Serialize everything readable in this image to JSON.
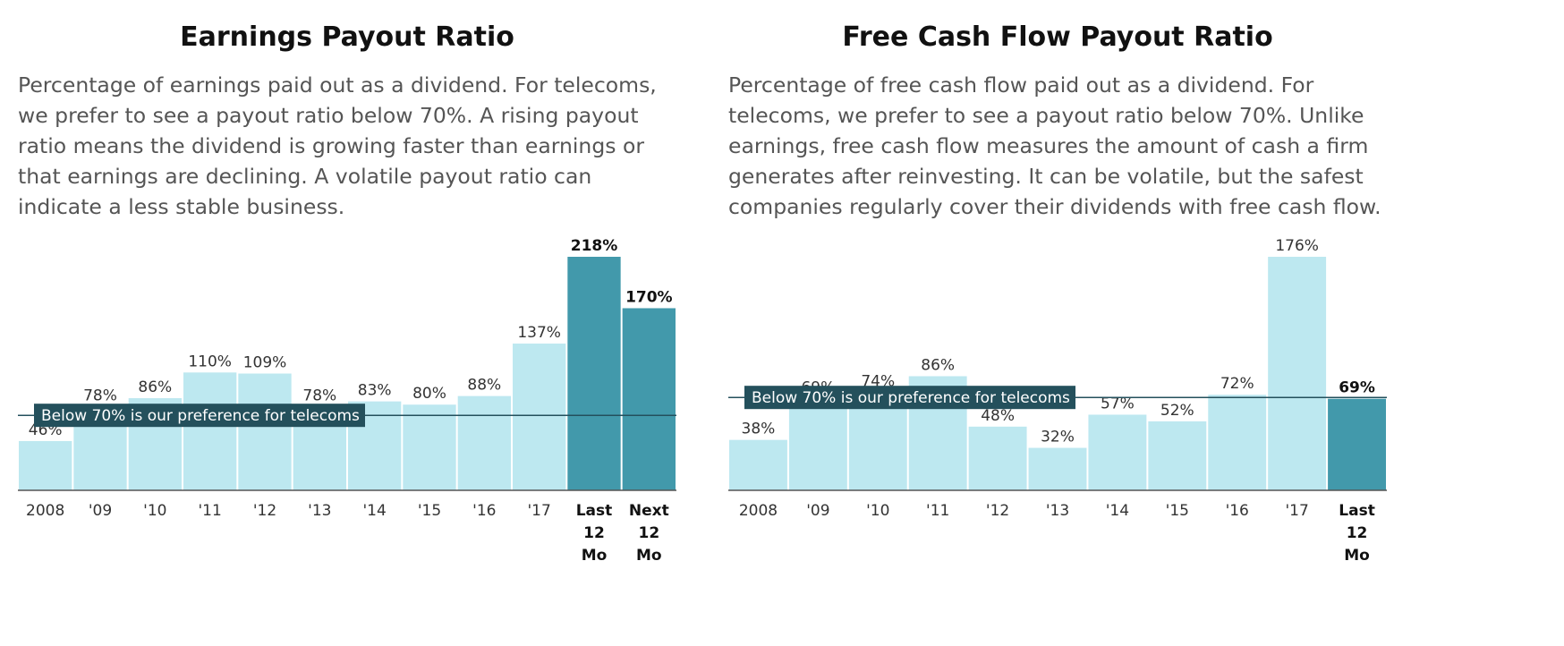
{
  "charts": [
    {
      "title": "Earnings Payout Ratio",
      "description": "Percentage of earnings paid out as a dividend. For telecoms, we prefer to see a payout ratio below 70%. A rising payout ratio means the dividend is growing faster than earnings or that earnings are declining. A volatile payout ratio can indicate a less stable business.",
      "threshold_label": "Below 70% is our preference for telecoms"
    },
    {
      "title": "Free Cash Flow Payout Ratio",
      "description": "Percentage of free cash flow paid out as a dividend. For telecoms, we prefer to see a payout ratio below 70%. Unlike earnings, free cash flow measures the amount of cash a firm generates after reinvesting. It can be volatile, but the safest companies regularly cover their dividends with free cash flow.",
      "threshold_label": "Below 70% is our preference for telecoms"
    }
  ],
  "colors": {
    "light_bar": "#bde8f0",
    "dark_bar": "#4299ab",
    "threshold_line": "#24505c",
    "threshold_label_bg": "#24505c",
    "threshold_label_text": "#ffffff"
  },
  "chart_data": [
    {
      "type": "bar",
      "title": "Earnings Payout Ratio",
      "categories": [
        "2008",
        "'09",
        "'10",
        "'11",
        "'12",
        "'13",
        "'14",
        "'15",
        "'16",
        "'17",
        "Last 12 Mo",
        "Next 12 Mo"
      ],
      "values": [
        46,
        78,
        86,
        110,
        109,
        78,
        83,
        80,
        88,
        137,
        218,
        170
      ],
      "value_labels": [
        "46%",
        "78%",
        "86%",
        "110%",
        "109%",
        "78%",
        "83%",
        "80%",
        "88%",
        "137%",
        "218%",
        "170%"
      ],
      "highlighted": [
        false,
        false,
        false,
        false,
        false,
        false,
        false,
        false,
        false,
        false,
        true,
        true
      ],
      "threshold": 70,
      "ylim": [
        0,
        218
      ]
    },
    {
      "type": "bar",
      "title": "Free Cash Flow Payout Ratio",
      "categories": [
        "2008",
        "'09",
        "'10",
        "'11",
        "'12",
        "'13",
        "'14",
        "'15",
        "'16",
        "'17",
        "Last 12 Mo"
      ],
      "values": [
        38,
        69,
        74,
        86,
        48,
        32,
        57,
        52,
        72,
        176,
        69
      ],
      "value_labels": [
        "38%",
        "69%",
        "74%",
        "86%",
        "48%",
        "32%",
        "57%",
        "52%",
        "72%",
        "176%",
        "69%"
      ],
      "highlighted": [
        false,
        false,
        false,
        false,
        false,
        false,
        false,
        false,
        false,
        false,
        true
      ],
      "threshold": 70,
      "ylim": [
        0,
        176
      ]
    }
  ]
}
